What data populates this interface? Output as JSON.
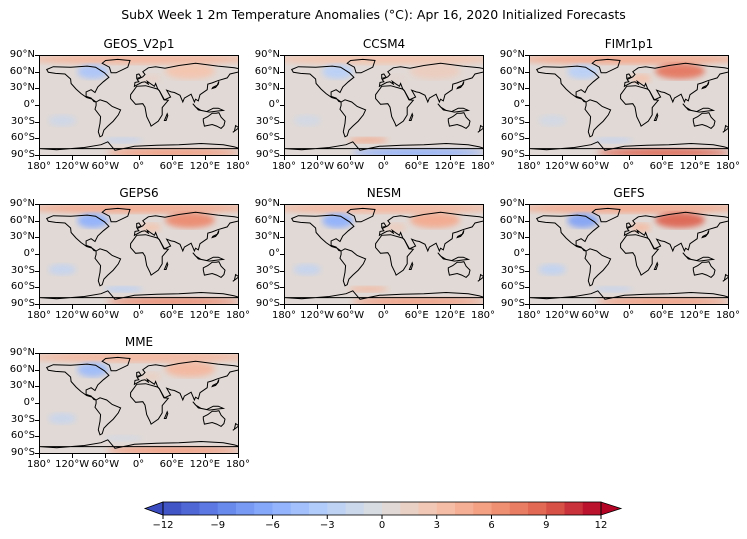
{
  "title": "SubX Week 1 2m Temperature Anomalies (°C): Apr 16, 2020 Initialized Forecasts",
  "chart_data": {
    "type": "heatmap",
    "variable": "2m temperature anomaly",
    "units": "°C",
    "panels": [
      {
        "name": "GEOS_V2p1",
        "anomalies": {
          "arctic": 4,
          "north_america_east": -4,
          "eurasia": 3,
          "antarctic": 6,
          "southern_ocean": -2
        }
      },
      {
        "name": "CCSM4",
        "anomalies": {
          "arctic": 3,
          "north_america_east": -3,
          "eurasia": 2,
          "antarctic": -6,
          "southern_ocean": 5
        }
      },
      {
        "name": "FIMr1p1",
        "anomalies": {
          "arctic": 5,
          "north_america_east": -3,
          "eurasia": 8,
          "antarctic": 9,
          "southern_ocean": -2
        }
      },
      {
        "name": "GEPS6",
        "anomalies": {
          "arctic": 5,
          "north_america_east": -6,
          "eurasia": 7,
          "antarctic": 7,
          "southern_ocean": -3
        }
      },
      {
        "name": "NESM",
        "anomalies": {
          "arctic": 4,
          "north_america_east": -6,
          "eurasia": 5,
          "antarctic": 6,
          "southern_ocean": 4
        }
      },
      {
        "name": "GEFS",
        "anomalies": {
          "arctic": 5,
          "north_america_east": -7,
          "eurasia": 9,
          "antarctic": 6,
          "southern_ocean": -2
        }
      },
      {
        "name": "MME",
        "anomalies": {
          "arctic": 4,
          "north_america_east": -5,
          "eurasia": 4,
          "antarctic": 6,
          "southern_ocean": -1
        }
      }
    ],
    "lat_ticks": [
      "90°N",
      "60°N",
      "30°N",
      "0°",
      "30°S",
      "60°S",
      "90°S"
    ],
    "lon_ticks": [
      "180°",
      "120°W",
      "60°W",
      "0°",
      "60°E",
      "120°E",
      "180°"
    ],
    "colorbar": {
      "min": -12,
      "max": 12,
      "extend": "both",
      "ticks": [
        -12,
        -9,
        -6,
        -3,
        0,
        3,
        6,
        9,
        12
      ],
      "tick_labels": [
        "−12",
        "−9",
        "−6",
        "−3",
        "0",
        "3",
        "6",
        "9",
        "12"
      ],
      "colormap": "coolwarm"
    }
  }
}
